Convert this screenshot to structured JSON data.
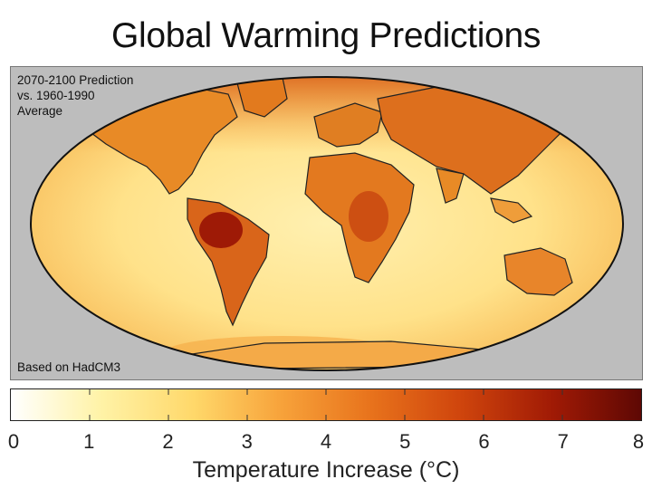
{
  "title": "Global Warming Predictions",
  "map": {
    "prediction_note": [
      "2070-2100 Prediction",
      "vs. 1960-1990",
      "Average"
    ],
    "model_note": "Based on HadCM3",
    "projection": "mollweide",
    "background_color": "#bdbdbd",
    "ocean_color": "#ffe79a",
    "land_color": "#e98a22",
    "coastline_color": "#222222",
    "hot_spot_color": "#9e1a06"
  },
  "legend": {
    "axis_label": "Temperature Increase (°C)",
    "min": 0,
    "max": 8,
    "ticks": [
      "0",
      "1",
      "2",
      "3",
      "4",
      "5",
      "6",
      "7",
      "8"
    ],
    "colors": [
      "#ffffff",
      "#fff3a8",
      "#ffd86a",
      "#f7a23a",
      "#e8731c",
      "#d0460d",
      "#a01a05",
      "#5e0804"
    ]
  }
}
